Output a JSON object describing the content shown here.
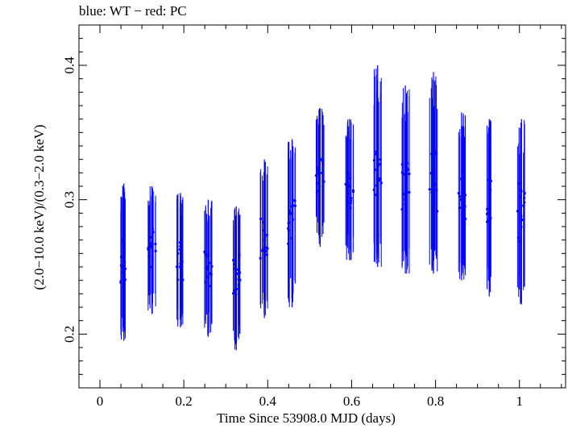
{
  "chart_data": {
    "type": "scatter",
    "title": "blue: WT − red: PC",
    "xlabel": "Time Since 53908.0 MJD (days)",
    "ylabel": "(2.0−10.0 keV)/(0.3−2.0 keV)",
    "xlim": [
      -0.05,
      1.11
    ],
    "ylim": [
      0.16,
      0.43
    ],
    "x_ticks": [
      "0",
      "0.2",
      "0.4",
      "0.6",
      "0.8",
      "1"
    ],
    "y_ticks": [
      "0.2",
      "0.3",
      "0.4"
    ],
    "grid": false,
    "legend": "none",
    "series_color": "#0000ff",
    "series": [
      {
        "marker": "dot-with-vertical-error-bars",
        "points": [
          {
            "x": 0.057,
            "y": 0.25,
            "ylo": 0.195,
            "yhi": 0.312
          },
          {
            "x": 0.124,
            "y": 0.265,
            "ylo": 0.215,
            "yhi": 0.31
          },
          {
            "x": 0.192,
            "y": 0.25,
            "ylo": 0.205,
            "yhi": 0.305
          },
          {
            "x": 0.258,
            "y": 0.25,
            "ylo": 0.198,
            "yhi": 0.3
          },
          {
            "x": 0.325,
            "y": 0.245,
            "ylo": 0.188,
            "yhi": 0.295
          },
          {
            "x": 0.392,
            "y": 0.27,
            "ylo": 0.212,
            "yhi": 0.33
          },
          {
            "x": 0.458,
            "y": 0.295,
            "ylo": 0.22,
            "yhi": 0.345
          },
          {
            "x": 0.525,
            "y": 0.33,
            "ylo": 0.265,
            "yhi": 0.368
          },
          {
            "x": 0.595,
            "y": 0.31,
            "ylo": 0.255,
            "yhi": 0.36
          },
          {
            "x": 0.662,
            "y": 0.315,
            "ylo": 0.25,
            "yhi": 0.4
          },
          {
            "x": 0.728,
            "y": 0.3,
            "ylo": 0.245,
            "yhi": 0.385
          },
          {
            "x": 0.795,
            "y": 0.3,
            "ylo": 0.245,
            "yhi": 0.395
          },
          {
            "x": 0.862,
            "y": 0.3,
            "ylo": 0.24,
            "yhi": 0.365
          },
          {
            "x": 0.928,
            "y": 0.29,
            "ylo": 0.228,
            "yhi": 0.36
          },
          {
            "x": 1.005,
            "y": 0.285,
            "ylo": 0.222,
            "yhi": 0.36
          }
        ]
      }
    ]
  }
}
